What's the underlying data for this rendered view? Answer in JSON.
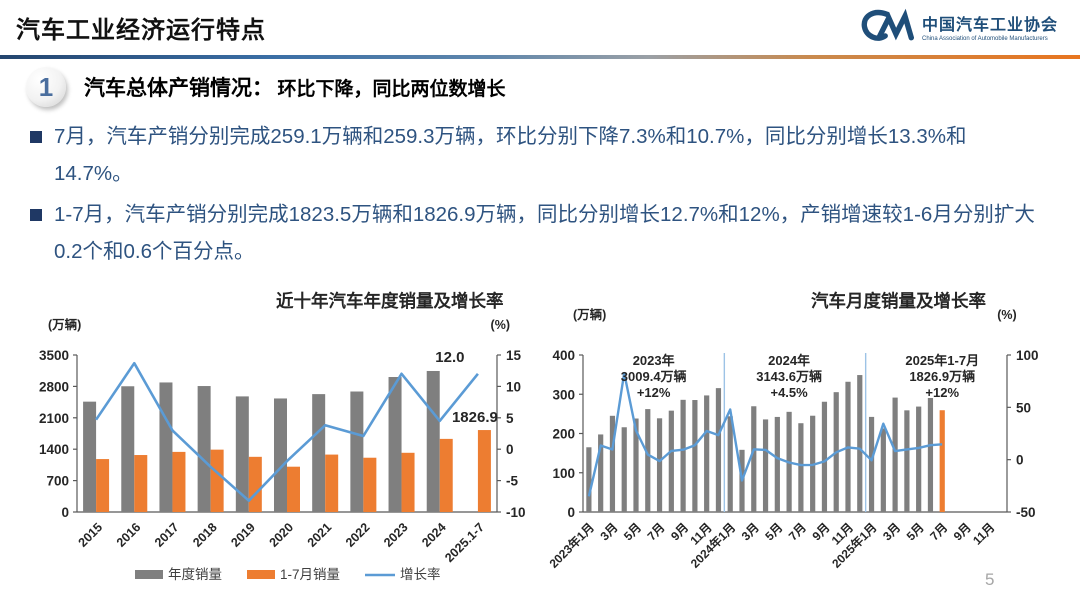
{
  "header": {
    "title": "汽车工业经济运行特点",
    "logo": {
      "mark": "caam-swoosh",
      "org_cn": "中国汽车工业协会",
      "org_en": "China Association of Automobile Manufacturers"
    }
  },
  "section": {
    "number": "1",
    "heading": "汽车总体产销情况：",
    "subheading": "环比下降，同比两位数增长"
  },
  "bullets": [
    "7月，汽车产销分别完成259.1万辆和259.3万辆，环比分别下降7.3%和10.7%，同比分别增长13.3%和14.7%。",
    "1-7月，汽车产销分别完成1823.5万辆和1826.9万辆，同比分别增长12.7%和12%，产销增速较1-6月分别扩大0.2个和0.6个百分点。"
  ],
  "page_number": "5",
  "colors": {
    "bar_gray": "#7F7F7F",
    "bar_orange": "#ED7D31",
    "line_blue": "#5B9BD5",
    "divider_blue": "#9DC3E6",
    "axis_text": "#262626",
    "axis_line": "#595959",
    "bullet_text": "#2E5380",
    "navy": "#1F3864",
    "logo_blue": "#1F4E79"
  },
  "chart_data": [
    {
      "type": "bar",
      "title": "近十年汽车年度销量及增长率",
      "unit_left": "(万辆)",
      "unit_right": "(%)",
      "categories": [
        "2015",
        "2016",
        "2017",
        "2018",
        "2019",
        "2020",
        "2021",
        "2022",
        "2023",
        "2024",
        "2025.1-7"
      ],
      "series": [
        {
          "name": "年度销量",
          "kind": "bar",
          "axis": "left",
          "color": "#7F7F7F",
          "values": [
            2460,
            2803,
            2888,
            2808,
            2577,
            2531,
            2628,
            2686,
            3009.4,
            3143.6,
            null
          ]
        },
        {
          "name": "1-7月销量",
          "kind": "bar",
          "axis": "left",
          "color": "#ED7D31",
          "values": [
            1180,
            1270,
            1340,
            1390,
            1230,
            1010,
            1280,
            1210,
            1320,
            1630,
            1826.9
          ]
        },
        {
          "name": "增长率",
          "kind": "line",
          "axis": "right",
          "color": "#5B9BD5",
          "values": [
            4.7,
            13.7,
            3.0,
            -2.8,
            -8.2,
            -1.9,
            3.8,
            2.1,
            12.0,
            4.5,
            12.0
          ]
        }
      ],
      "ylim_left": [
        0,
        3500
      ],
      "yticks_left": [
        0,
        700,
        1400,
        2100,
        2800,
        3500
      ],
      "ylim_right": [
        -10,
        15
      ],
      "yticks_right": [
        -10,
        -5,
        0,
        5,
        10,
        15
      ],
      "point_labels": [
        {
          "text": "12.0",
          "attach": "line-end"
        },
        {
          "text": "1826.9",
          "attach": "last-bar"
        }
      ],
      "legend_position": "bottom",
      "grid": false
    },
    {
      "type": "bar",
      "title": "汽车月度销量及增长率",
      "unit_left": "(万辆)",
      "unit_right": "(%)",
      "x_labels": [
        "2023年1月",
        "3月",
        "5月",
        "7月",
        "9月",
        "11月",
        "2024年1月",
        "3月",
        "5月",
        "7月",
        "9月",
        "11月",
        "2025年1月",
        "3月",
        "5月",
        "7月",
        "9月",
        "11月"
      ],
      "n_slots": 36,
      "bars": {
        "name": "月度销量",
        "color": "#7F7F7F",
        "last_color": "#ED7D31",
        "values": [
          164.9,
          197.6,
          245.1,
          215.9,
          238.2,
          262.2,
          238.7,
          258.2,
          285.8,
          285.3,
          297.0,
          315.6,
          243.9,
          158.4,
          269.4,
          235.9,
          242.2,
          255.2,
          226.2,
          245.3,
          280.9,
          305.3,
          331.8,
          348.9,
          242.3,
          212.9,
          291.5,
          259.0,
          268.6,
          290.4,
          259.3
        ]
      },
      "line": {
        "name": "增长率",
        "color": "#5B9BD5",
        "values": [
          -35.0,
          13.5,
          9.7,
          82.7,
          27.9,
          4.8,
          -1.4,
          8.4,
          9.5,
          13.8,
          27.4,
          23.5,
          47.9,
          -19.9,
          9.9,
          9.3,
          1.5,
          -2.7,
          -5.2,
          -5.0,
          -1.7,
          7.0,
          11.7,
          10.5,
          -0.6,
          34.4,
          8.2,
          9.8,
          11.2,
          13.8,
          14.7
        ]
      },
      "ylim_left": [
        0,
        400
      ],
      "yticks_left": [
        0,
        100,
        200,
        300,
        400
      ],
      "ylim_right": [
        -50,
        100
      ],
      "yticks_right": [
        -50,
        0,
        50,
        100
      ],
      "dividers": [
        12,
        24
      ],
      "annotations": [
        {
          "lines": [
            "2023年",
            "3009.4万辆",
            "+12%"
          ]
        },
        {
          "lines": [
            "2024年",
            "3143.6万辆",
            "+4.5%"
          ]
        },
        {
          "lines": [
            "2025年1-7月",
            "1826.9万辆",
            "+12%"
          ]
        }
      ],
      "grid": false
    }
  ]
}
